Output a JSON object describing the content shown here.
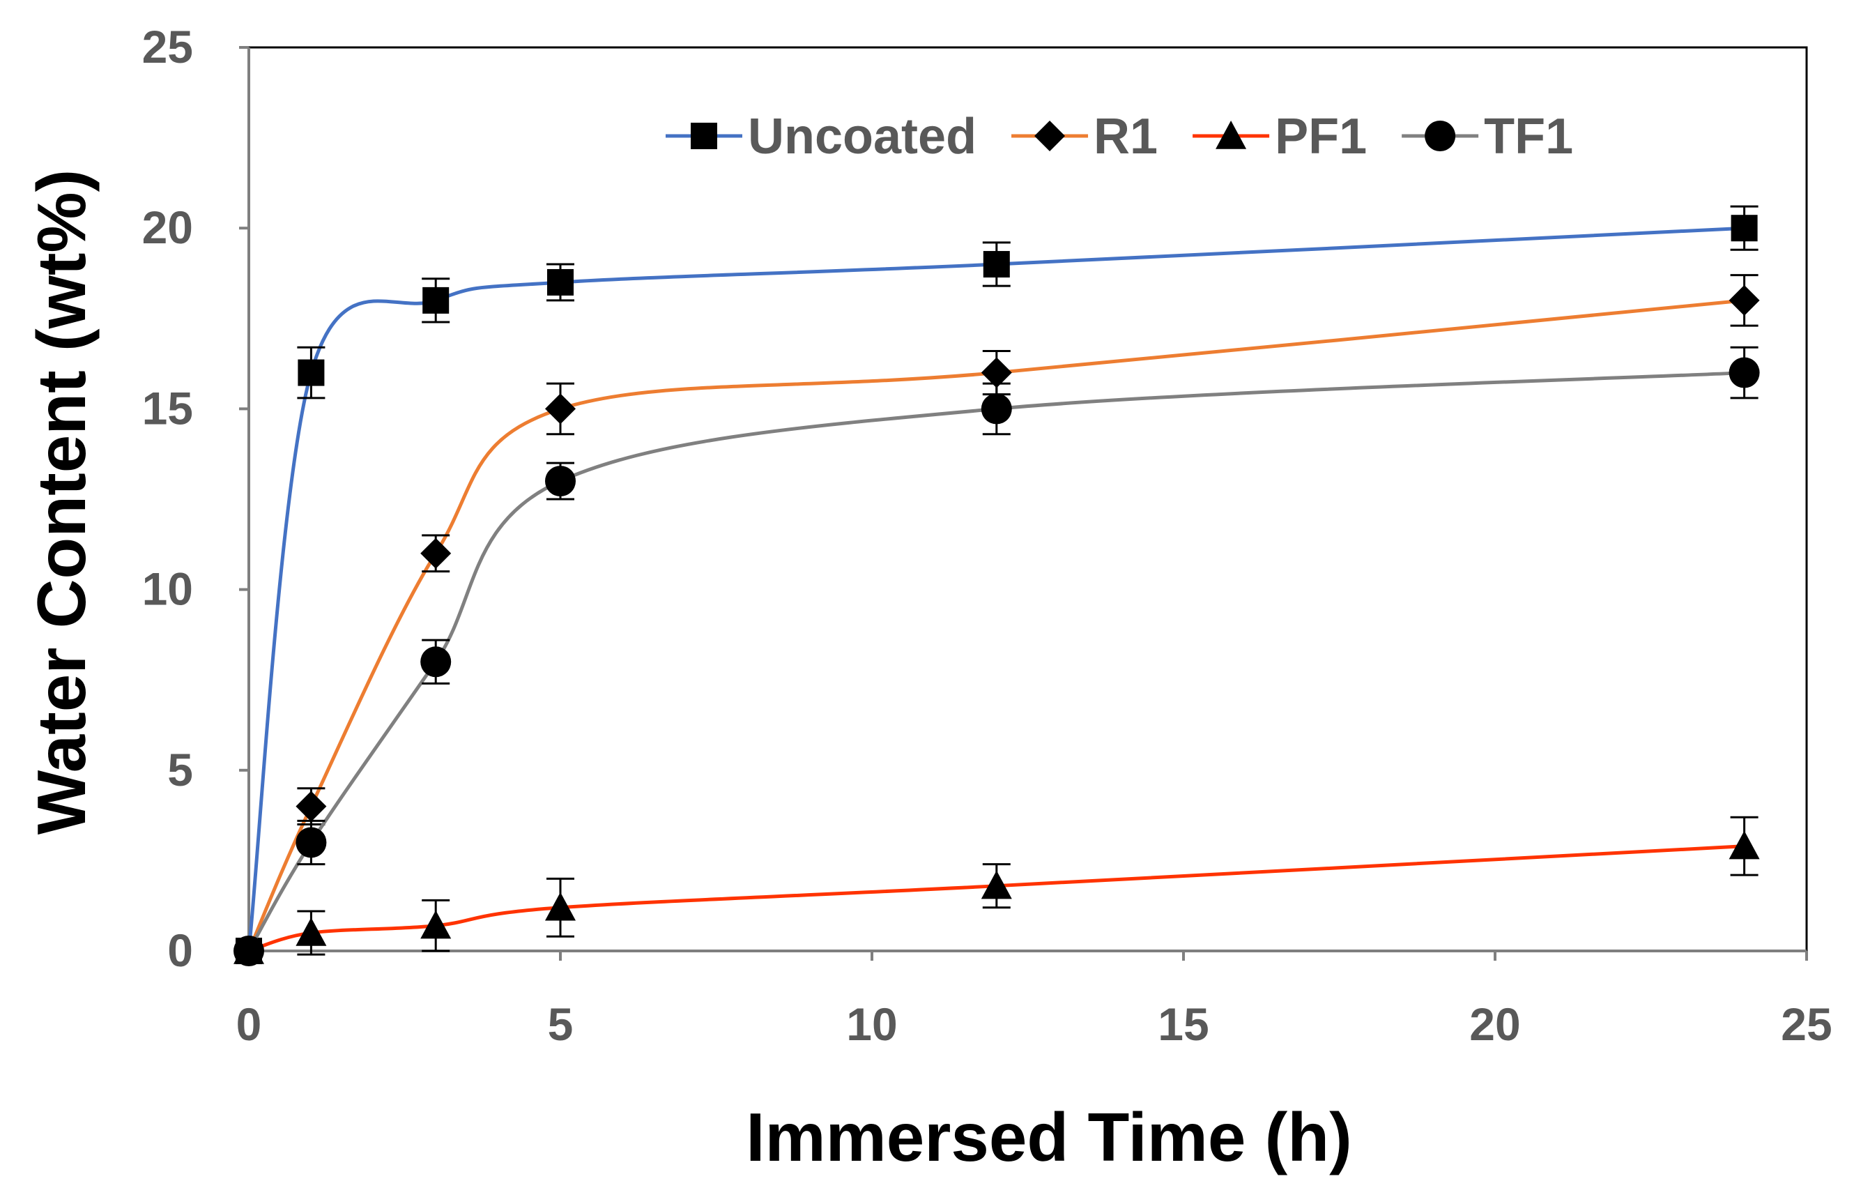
{
  "chart_data": {
    "type": "line",
    "xlabel": "Immersed Time (h)",
    "ylabel": "Water Content (wt%)",
    "xlim": [
      0,
      25
    ],
    "ylim": [
      0,
      25
    ],
    "xticks": [
      0,
      5,
      10,
      15,
      20,
      25
    ],
    "yticks": [
      0,
      5,
      10,
      15,
      20,
      25
    ],
    "grid": false,
    "legend_position": "top-center",
    "x": [
      0,
      1,
      3,
      5,
      12,
      24
    ],
    "series": [
      {
        "name": "Uncoated",
        "color": "#4472C4",
        "marker": "square",
        "values": [
          0,
          16,
          18,
          18.5,
          19,
          20
        ],
        "errors": [
          0,
          0.7,
          0.6,
          0.5,
          0.6,
          0.6
        ]
      },
      {
        "name": "R1",
        "color": "#ED7D31",
        "marker": "diamond",
        "values": [
          0,
          4,
          11,
          15,
          16,
          18
        ],
        "errors": [
          0,
          0.5,
          0.5,
          0.7,
          0.6,
          0.7
        ]
      },
      {
        "name": "PF1",
        "color": "#FF3300",
        "marker": "triangle",
        "values": [
          0,
          0.5,
          0.7,
          1.2,
          1.8,
          2.9
        ],
        "errors": [
          0,
          0.6,
          0.7,
          0.8,
          0.6,
          0.8
        ]
      },
      {
        "name": "TF1",
        "color": "#808080",
        "marker": "circle",
        "values": [
          0,
          3,
          8,
          13,
          15,
          16
        ],
        "errors": [
          0,
          0.6,
          0.6,
          0.5,
          0.7,
          0.7
        ]
      }
    ]
  }
}
